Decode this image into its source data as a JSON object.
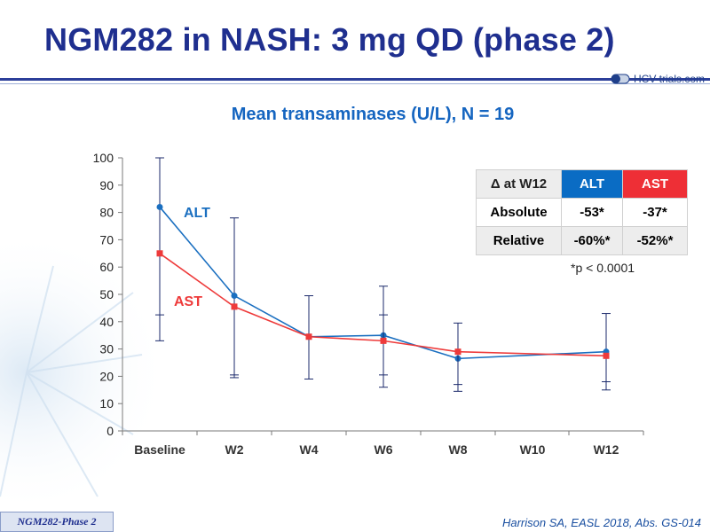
{
  "slide": {
    "title": "NGM282 in NASH: 3 mg QD (phase 2)",
    "logo_text": "HCV-trials.com",
    "footer_tag": "NGM282-Phase 2",
    "citation": "Harrison SA, EASL 2018, Abs. GS-014",
    "footnote": "*p < 0.0001"
  },
  "table": {
    "header": [
      "Δ at W12",
      "ALT",
      "AST"
    ],
    "rows": [
      {
        "label": "Absolute",
        "alt": "-53*",
        "ast": "-37*"
      },
      {
        "label": "Relative",
        "alt": "-60%*",
        "ast": "-52%*"
      }
    ]
  },
  "colors": {
    "alt": "#1a6fc0",
    "ast": "#ee3a3a",
    "title": "#1f2f8f",
    "axis": "#7a7a7a"
  },
  "chart_data": {
    "type": "line",
    "title": "Mean transaminases (U/L), N = 19",
    "categories": [
      "Baseline",
      "W2",
      "W4",
      "W6",
      "W8",
      "W10",
      "W12"
    ],
    "ylim": [
      0,
      100
    ],
    "yticks": [
      0,
      10,
      20,
      30,
      40,
      50,
      60,
      70,
      80,
      90,
      100
    ],
    "grid": false,
    "series": [
      {
        "name": "ALT",
        "color": "#1a6fc0",
        "marker": "circle",
        "points": [
          {
            "x": "Baseline",
            "y": 82,
            "err_low": 42.5,
            "err_high": 100
          },
          {
            "x": "W2",
            "y": 49.5,
            "err_low": 20.5,
            "err_high": 78
          },
          {
            "x": "W4",
            "y": 34.5,
            "err_low": 19,
            "err_high": 49.5
          },
          {
            "x": "W6",
            "y": 35,
            "err_low": 20.5,
            "err_high": 53
          },
          {
            "x": "W8",
            "y": 26.5,
            "err_low": 14.5,
            "err_high": 39.5
          },
          {
            "x": "W12",
            "y": 29,
            "err_low": 15,
            "err_high": 43
          }
        ]
      },
      {
        "name": "AST",
        "color": "#ee3a3a",
        "marker": "square",
        "points": [
          {
            "x": "Baseline",
            "y": 65,
            "err_low": 33,
            "err_high": null
          },
          {
            "x": "W2",
            "y": 45.5,
            "err_low": 19.5,
            "err_high": null
          },
          {
            "x": "W4",
            "y": 34.5,
            "err_low": null,
            "err_high": null
          },
          {
            "x": "W6",
            "y": 33,
            "err_low": 16,
            "err_high": 42.5
          },
          {
            "x": "W8",
            "y": 29,
            "err_low": 17,
            "err_high": null
          },
          {
            "x": "W12",
            "y": 27.5,
            "err_low": 18,
            "err_high": null
          }
        ]
      }
    ],
    "connect_points": [
      [
        "W8",
        26.5,
        "W10",
        28,
        "W12",
        29
      ]
    ],
    "legend": "inline labels"
  }
}
